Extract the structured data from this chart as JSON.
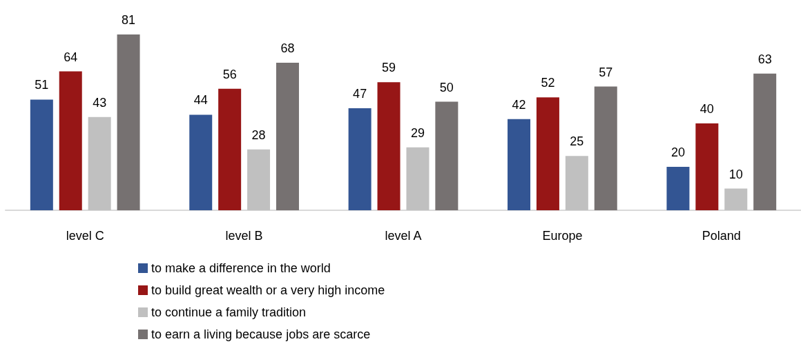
{
  "chart_data": {
    "type": "bar",
    "categories": [
      "level C",
      "level B",
      "level A",
      "Europe",
      "Poland"
    ],
    "series": [
      {
        "name": "to make a difference in the world",
        "color": "#335593",
        "values": [
          51,
          44,
          47,
          42,
          20
        ]
      },
      {
        "name": "to build great wealth or a very high income",
        "color": "#971616",
        "values": [
          64,
          56,
          59,
          52,
          40
        ]
      },
      {
        "name": "to continue a family tradition",
        "color": "#c0c0c0",
        "values": [
          43,
          28,
          29,
          25,
          10
        ]
      },
      {
        "name": "to earn a living because jobs are scarce",
        "color": "#767171",
        "values": [
          81,
          68,
          50,
          57,
          63
        ]
      }
    ],
    "data_labels": true,
    "legend": "bottom"
  }
}
